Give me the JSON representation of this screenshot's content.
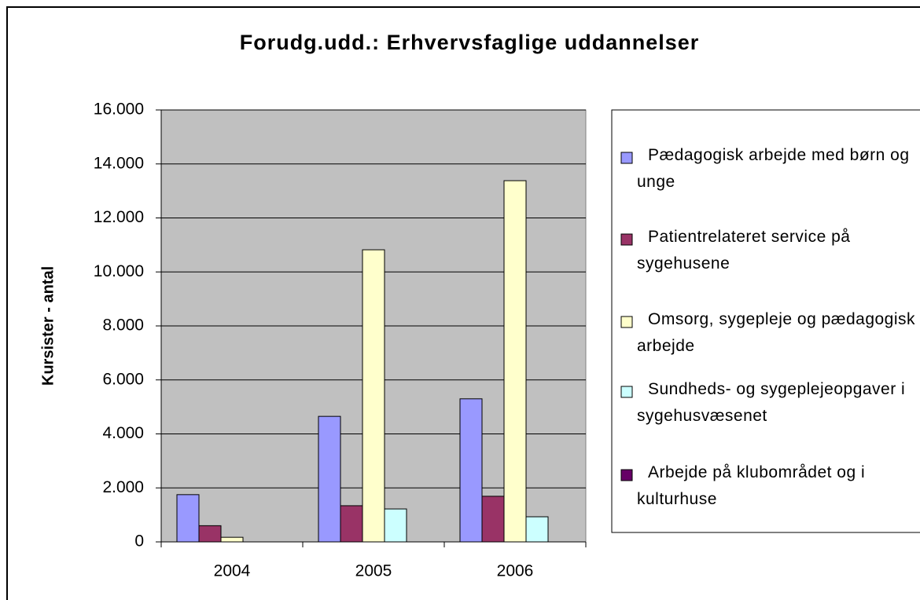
{
  "chart_data": {
    "type": "bar",
    "title": "Forudg.udd.: Erhvervsfaglige uddannelser",
    "y_label": "Kursister - antal",
    "categories": [
      "2004",
      "2005",
      "2006"
    ],
    "series": [
      {
        "name": "Pædagogisk arbejde med børn og unge",
        "color": "#9999ff",
        "values": [
          1750,
          4650,
          5300
        ]
      },
      {
        "name": "Patientrelateret service på sygehusene",
        "color": "#993366",
        "values": [
          600,
          1340,
          1690
        ]
      },
      {
        "name": "Omsorg, sygepleje og pædagogisk arbejde",
        "color": "#ffffcc",
        "values": [
          170,
          10820,
          13380
        ]
      },
      {
        "name": "Sundheds- og sygeplejeopgaver i sygehusvæsenet",
        "color": "#ccffff",
        "values": [
          0,
          1220,
          930
        ]
      },
      {
        "name": "Arbejde på klubområdet og i kulturhuse",
        "color": "#660066",
        "values": [
          0,
          0,
          0
        ]
      }
    ],
    "ylim": [
      0,
      16000
    ],
    "yticks": [
      0,
      {
        "value": 2000,
        "label": "2.000"
      },
      {
        "value": 4000,
        "label": "4.000"
      },
      {
        "value": 6000,
        "label": "6.000"
      },
      {
        "value": 8000,
        "label": "8.000"
      },
      {
        "value": 10000,
        "label": "10.000"
      },
      {
        "value": 12000,
        "label": "12.000"
      },
      {
        "value": 14000,
        "label": "14.000"
      },
      {
        "value": 16000,
        "label": "16.000"
      }
    ],
    "grid": true,
    "plot_background": "#c0c0c0",
    "legend": "right"
  }
}
